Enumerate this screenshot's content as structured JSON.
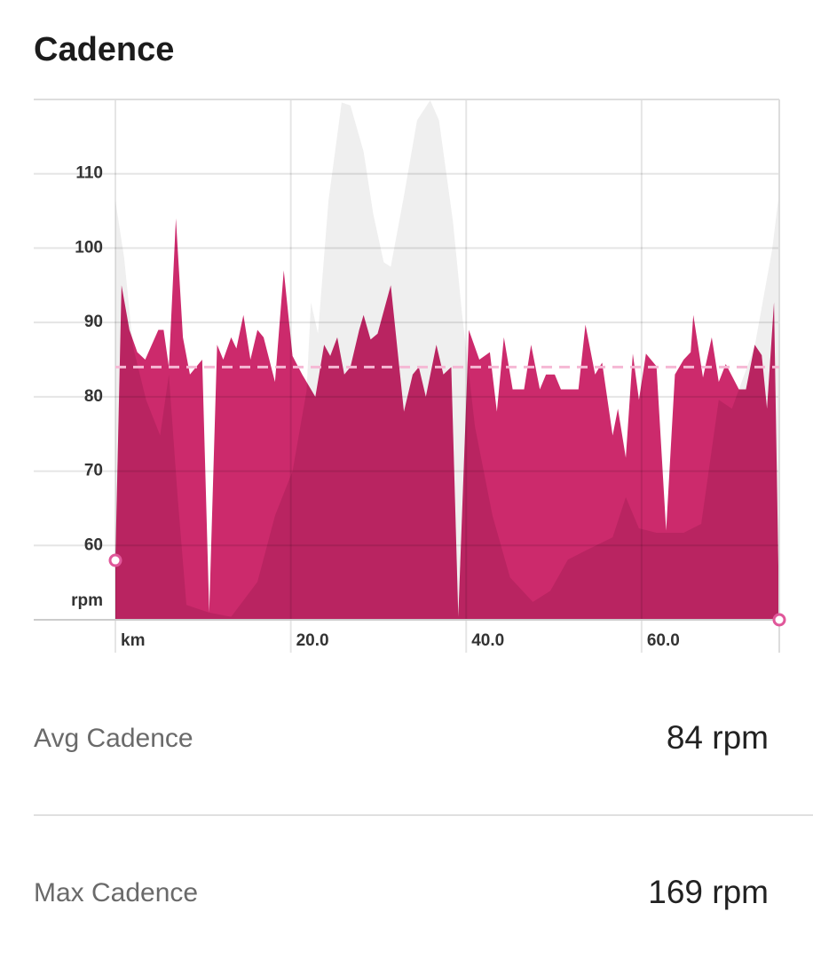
{
  "chart_data": {
    "type": "area",
    "title": "Cadence",
    "y_label": "rpm",
    "xlim": [
      0,
      75.7
    ],
    "ylim": [
      50,
      120
    ],
    "xticks": [
      {
        "value": 0,
        "label": "km"
      },
      {
        "value": 20,
        "label": "20.0"
      },
      {
        "value": 40,
        "label": "40.0"
      },
      {
        "value": 60,
        "label": "60.0"
      }
    ],
    "yticks": [
      60,
      70,
      80,
      90,
      100,
      110
    ],
    "grid": true,
    "avg_line": 84,
    "avg_line_color": "#f5b8d4",
    "series": [
      {
        "color": "#cc2a6c",
        "x": [
          0,
          0.7,
          1.6,
          2.5,
          3.4,
          4.9,
          5.5,
          6.1,
          6.9,
          7.7,
          8.5,
          9.9,
          10.7,
          11.6,
          12.3,
          13.2,
          13.8,
          14.6,
          15.4,
          16.2,
          16.9,
          18.2,
          19.2,
          20.2,
          21.3,
          22.8,
          23.8,
          24.5,
          25.3,
          26.1,
          26.8,
          27.8,
          28.3,
          29.1,
          29.9,
          31.4,
          32.9,
          33.9,
          34.6,
          35.4,
          36.6,
          37.4,
          38.3,
          39.1,
          40.3,
          41.5,
          42.7,
          43.5,
          44.3,
          45.3,
          46.6,
          47.4,
          48.4,
          49.1,
          50.1,
          50.8,
          52.8,
          53.6,
          54.7,
          55.5,
          56.7,
          57.3,
          58.2,
          59.0,
          59.7,
          60.5,
          61.7,
          62.8,
          63.8,
          64.8,
          65.6,
          65.9,
          67.0,
          68.0,
          68.8,
          69.6,
          71.1,
          71.9,
          72.9,
          73.7,
          74.3,
          75.1,
          75.7
        ],
        "values": [
          58,
          95,
          89,
          86,
          85,
          89,
          89,
          84,
          104,
          88,
          83,
          85,
          51,
          87,
          85,
          88,
          86.5,
          91,
          85,
          89,
          88,
          82,
          97,
          85.5,
          83,
          80,
          87,
          85.5,
          88,
          83,
          84,
          89,
          91,
          87.7,
          88.5,
          95,
          78,
          83,
          84,
          80,
          87,
          83,
          84,
          50.4,
          89,
          85,
          86,
          78,
          88,
          81,
          81,
          87,
          81,
          83,
          83,
          81,
          81,
          89.7,
          83,
          84.6,
          74.8,
          78.4,
          71.8,
          85.8,
          79.6,
          85.8,
          84.1,
          62,
          83,
          85,
          86,
          91,
          82.6,
          88,
          82,
          84.4,
          81,
          81,
          87,
          85.6,
          78.4,
          92.7,
          50
        ]
      },
      {
        "color": "#efefef",
        "x": [
          0,
          1.0,
          2.0,
          3.5,
          5.1,
          6.1,
          7.1,
          8.1,
          10.6,
          13.2,
          16.2,
          18.2,
          20.2,
          21.8,
          22.3,
          23.1,
          24.3,
          25.8,
          26.8,
          28.3,
          29.4,
          30.6,
          31.4,
          32.9,
          34.4,
          35.9,
          36.9,
          38.5,
          39.5,
          41.0,
          43.0,
          45.0,
          47.6,
          49.6,
          51.6,
          53.6,
          56.7,
          58.2,
          59.7,
          61.7,
          64.8,
          66.8,
          68.8,
          70.3,
          72.9,
          74.9,
          75.7
        ],
        "values": [
          106.4,
          98.7,
          86.8,
          79.6,
          74.8,
          83,
          66.5,
          52,
          51,
          50.4,
          55.1,
          64,
          70,
          80.8,
          92.7,
          88.5,
          106.4,
          119.6,
          119.2,
          113,
          104.6,
          98.1,
          97.5,
          107,
          117.2,
          119.9,
          117.2,
          103.5,
          91.5,
          76,
          64,
          55.7,
          52.4,
          53.9,
          58.1,
          59.3,
          61.1,
          66.5,
          62.3,
          61.7,
          61.7,
          62.9,
          79.6,
          78.4,
          86.8,
          99.9,
          107.6
        ]
      }
    ]
  },
  "stats": [
    {
      "label": "Avg Cadence",
      "value": "84 rpm"
    },
    {
      "label": "Max Cadence",
      "value": "169 rpm"
    }
  ]
}
